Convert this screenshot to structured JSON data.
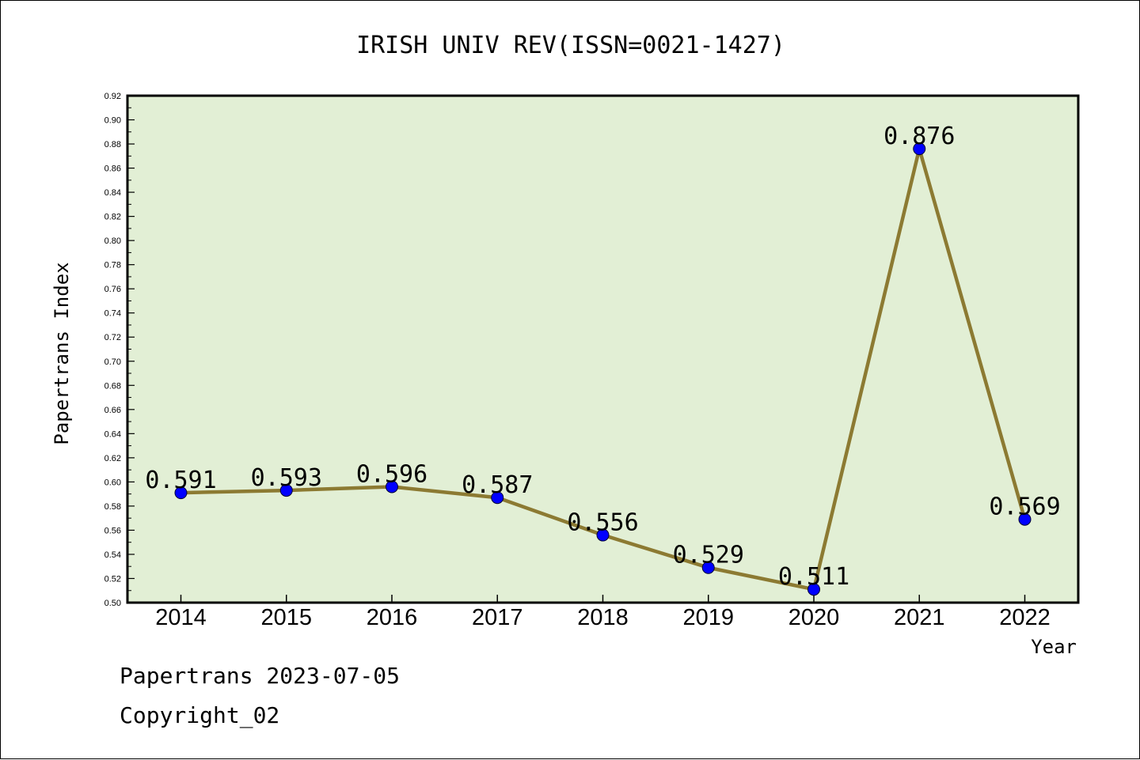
{
  "chart_data": {
    "type": "line",
    "title": "IRISH UNIV REV(ISSN=0021-1427)",
    "xlabel": "Year",
    "ylabel": "Papertrans Index",
    "categories": [
      "2014",
      "2015",
      "2016",
      "2017",
      "2018",
      "2019",
      "2020",
      "2021",
      "2022"
    ],
    "values": [
      0.591,
      0.593,
      0.596,
      0.587,
      0.556,
      0.529,
      0.511,
      0.876,
      0.569
    ],
    "data_labels": [
      "0.591",
      "0.593",
      "0.596",
      "0.587",
      "0.556",
      "0.529",
      "0.511",
      "0.876",
      "0.569"
    ],
    "ylim": [
      0.5,
      0.92
    ],
    "yticks": [
      "0.50",
      "0.52",
      "0.54",
      "0.56",
      "0.58",
      "0.60",
      "0.62",
      "0.64",
      "0.66",
      "0.68",
      "0.70",
      "0.72",
      "0.74",
      "0.76",
      "0.78",
      "0.80",
      "0.82",
      "0.84",
      "0.86",
      "0.88",
      "0.90",
      "0.92"
    ],
    "grid": false,
    "colors": {
      "plot_background": "#e2efd5",
      "line": "#8c7a32",
      "marker": "#0000ff"
    }
  },
  "footer": {
    "line1": "Papertrans 2023-07-05",
    "line2": "Copyright_02"
  }
}
